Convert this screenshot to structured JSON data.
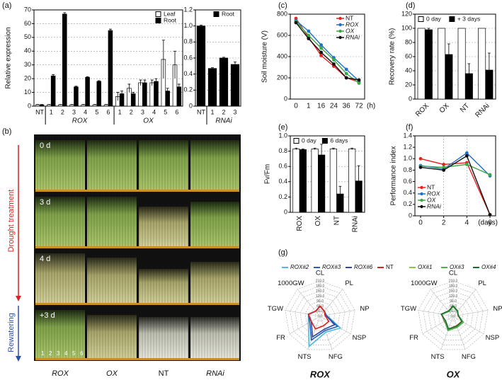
{
  "chart_data": [
    {
      "type": "bar",
      "panel": "(a)",
      "ylabel": "Relative expression",
      "categories": [
        "NT",
        "1",
        "2",
        "3",
        "4",
        "5",
        "6",
        "1",
        "2",
        "3",
        "4",
        "5",
        "6"
      ],
      "group_labels": [
        "ROX",
        "OX"
      ],
      "series": [
        {
          "name": "Leaf",
          "color": "#ffffff",
          "values": [
            1,
            1,
            1,
            1,
            1,
            1,
            1,
            7,
            13,
            17,
            17,
            34,
            30
          ],
          "errors": [
            0.2,
            0.2,
            0.2,
            0.2,
            0.2,
            0.2,
            0.2,
            3,
            3,
            2,
            2,
            14,
            10
          ]
        },
        {
          "name": "Root",
          "color": "#000000",
          "values": [
            1,
            22,
            67,
            14,
            21,
            18,
            55,
            9,
            9,
            17,
            18,
            11,
            14
          ],
          "errors": [
            0.2,
            1,
            1,
            0.5,
            0.5,
            0.5,
            1,
            2,
            1,
            2,
            2,
            2,
            2
          ]
        }
      ],
      "ylim": [
        0,
        70
      ],
      "yticks": [
        0,
        10,
        20,
        30,
        40,
        50,
        60,
        70
      ],
      "grid": true,
      "legend": "upper right"
    },
    {
      "type": "bar",
      "categories": [
        "NT",
        "1",
        "2",
        "3"
      ],
      "group_labels": [
        "RNAi"
      ],
      "series": [
        {
          "name": "Root",
          "color": "#000000",
          "values": [
            1.0,
            0.47,
            0.6,
            0.52
          ],
          "errors": [
            0.01,
            0.01,
            0.01,
            0.03
          ]
        }
      ],
      "ylim": [
        0,
        1.2
      ],
      "yticks": [
        0,
        0.2,
        0.4,
        0.6,
        0.8,
        {
          "value": 1,
          "label": "1.0"
        },
        1.2
      ],
      "grid": true,
      "legend": "upper right"
    },
    {
      "type": "line",
      "panel": "(c)",
      "ylabel": "Soil moisture (V)",
      "xlabel": "(h)",
      "categories": [
        "0",
        "1",
        "16",
        "24",
        "36",
        "72"
      ],
      "series": [
        {
          "name": "NT",
          "color": "#e8231f",
          "values": [
            760,
            580,
            410,
            310,
            200,
            160
          ]
        },
        {
          "name": "ROX",
          "color": "#1e73c8",
          "values": [
            740,
            640,
            510,
            390,
            280,
            170
          ]
        },
        {
          "name": "OX",
          "color": "#3aa845",
          "values": [
            730,
            600,
            480,
            370,
            240,
            150
          ]
        },
        {
          "name": "RNAi",
          "color": "#111111",
          "values": [
            720,
            570,
            440,
            330,
            200,
            180
          ]
        }
      ],
      "ylim": [
        0,
        800
      ],
      "yticks": [
        0,
        200,
        400,
        600,
        800
      ],
      "grid": true,
      "legend": "upper right"
    },
    {
      "type": "bar",
      "panel": "(d)",
      "ylabel": "Recovery rate (%)",
      "categories": [
        "ROX",
        "OX",
        "NT",
        "RNAi"
      ],
      "series": [
        {
          "name": "0 day",
          "color": "#ffffff",
          "values": [
            100,
            100,
            100,
            100
          ]
        },
        {
          "name": "+ 3 days",
          "color": "#000000",
          "values": [
            98,
            63,
            36,
            41
          ],
          "errors": [
            2,
            15,
            14,
            24
          ]
        }
      ],
      "ylim": [
        0,
        120
      ],
      "yticks": [
        0,
        20,
        40,
        60,
        80,
        100,
        120
      ],
      "grid": true,
      "legend": "upper center"
    },
    {
      "type": "bar",
      "panel": "(e)",
      "ylabel": "Fv/Fm",
      "categories": [
        "ROX",
        "OX",
        "NT",
        "RNAi"
      ],
      "series": [
        {
          "name": "0 day",
          "color": "#ffffff",
          "values": [
            0.83,
            0.83,
            0.83,
            0.83
          ],
          "errors": [
            0.01,
            0.01,
            0.01,
            0.01
          ]
        },
        {
          "name": "6 days",
          "color": "#000000",
          "values": [
            0.82,
            0.75,
            0.24,
            0.41
          ],
          "errors": [
            0.01,
            0.14,
            0.1,
            0.2
          ]
        }
      ],
      "ylim": [
        0,
        1
      ],
      "yticks": [
        0,
        0.2,
        0.4,
        0.6,
        0.8,
        {
          "value": 1,
          "label": "1.0"
        }
      ],
      "grid": true,
      "legend": "upper center"
    },
    {
      "type": "line",
      "panel": "(f)",
      "ylabel": "Performance index",
      "xlabel": "(days)",
      "x": [
        0,
        2,
        4,
        6
      ],
      "xlim": [
        0,
        6
      ],
      "xticks": [
        0,
        2,
        4,
        6
      ],
      "vlines": [
        2,
        4
      ],
      "series": [
        {
          "name": "NT",
          "color": "#e8231f",
          "values": [
            1.0,
            0.9,
            0.93,
            0.02
          ]
        },
        {
          "name": "ROX",
          "color": "#1e73c8",
          "values": [
            0.88,
            0.82,
            1.1,
            0.7
          ]
        },
        {
          "name": "OX",
          "color": "#3aa845",
          "values": [
            0.87,
            0.85,
            0.9,
            0.72
          ]
        },
        {
          "name": "RNAi",
          "color": "#111111",
          "values": [
            0.85,
            0.8,
            1.05,
            0.02
          ]
        }
      ],
      "ylim": [
        0,
        1.4
      ],
      "yticks": [
        0,
        0.2,
        0.4,
        0.6,
        0.8,
        {
          "value": 1,
          "label": "1.0"
        },
        1.2,
        1.4
      ],
      "grid": false,
      "legend": "lower left"
    },
    {
      "type": "radar",
      "panel": "(g)",
      "title": "ROX",
      "categories": [
        "CL",
        "PL",
        "NP",
        "NSP",
        "NFG",
        "NTS",
        "FR",
        "TGW",
        "1000GW"
      ],
      "series": [
        {
          "name": "ROX#2",
          "color": "#4fb8dc",
          "values": [
            60,
            40,
            40,
            140,
            100,
            190,
            80,
            70,
            40
          ]
        },
        {
          "name": "ROX#3",
          "color": "#1f5fbf",
          "values": [
            60,
            40,
            35,
            120,
            90,
            150,
            70,
            70,
            40
          ]
        },
        {
          "name": "ROX#6",
          "color": "#34479b",
          "values": [
            60,
            40,
            35,
            100,
            80,
            130,
            60,
            70,
            40
          ]
        },
        {
          "name": "NT",
          "color": "#e0201b",
          "values": [
            60,
            40,
            30,
            60,
            60,
            80,
            60,
            70,
            40
          ]
        }
      ],
      "rlim": [
        0,
        210
      ],
      "rticks": [
        {
          "value": 0,
          "label": "0.0"
        },
        {
          "value": 30,
          "label": "30.0"
        },
        {
          "value": 60,
          "label": "60.0"
        },
        {
          "value": 90,
          "label": "90.0"
        },
        {
          "value": 120,
          "label": "120.0"
        },
        {
          "value": 150,
          "label": "150.0"
        },
        {
          "value": 180,
          "label": "180.0"
        },
        {
          "value": 210,
          "label": "210.0"
        }
      ]
    },
    {
      "type": "radar",
      "title": "OX",
      "categories": [
        "CL",
        "PL",
        "NP",
        "NSP",
        "NFG",
        "NTS",
        "FR",
        "TGW",
        "1000GW"
      ],
      "series": [
        {
          "name": "NT",
          "color": "#e0201b",
          "values": [
            60,
            40,
            30,
            60,
            60,
            80,
            60,
            70,
            40
          ]
        },
        {
          "name": "OX#1",
          "color": "#8cc63f",
          "values": [
            60,
            40,
            30,
            65,
            65,
            85,
            55,
            70,
            40
          ]
        },
        {
          "name": "OX#3",
          "color": "#4caf50",
          "values": [
            58,
            38,
            32,
            70,
            70,
            90,
            58,
            68,
            38
          ]
        },
        {
          "name": "OX#4",
          "color": "#1e6b2e",
          "values": [
            62,
            42,
            30,
            60,
            62,
            80,
            52,
            72,
            42
          ]
        }
      ],
      "rlim": [
        0,
        210
      ],
      "rticks": [
        {
          "value": 0,
          "label": "0.0"
        },
        {
          "value": 30,
          "label": "30.0"
        },
        {
          "value": 60,
          "label": "60.0"
        },
        {
          "value": 90,
          "label": "90.0"
        },
        {
          "value": 120,
          "label": "120.0"
        },
        {
          "value": 150,
          "label": "150.0"
        },
        {
          "value": 180,
          "label": "180.0"
        },
        {
          "value": 210,
          "label": "210.0"
        }
      ]
    }
  ],
  "photo": {
    "panel": "(b)",
    "stages": [
      "0 d",
      "3 d",
      "4 d",
      "+3 d"
    ],
    "side_labels": [
      "Drought treatment",
      "Rewatering"
    ],
    "plant_numbers": [
      "1",
      "2",
      "3",
      "4",
      "5",
      "6"
    ],
    "group_labels": [
      "ROX",
      "OX",
      "NT",
      "RNAi"
    ]
  }
}
